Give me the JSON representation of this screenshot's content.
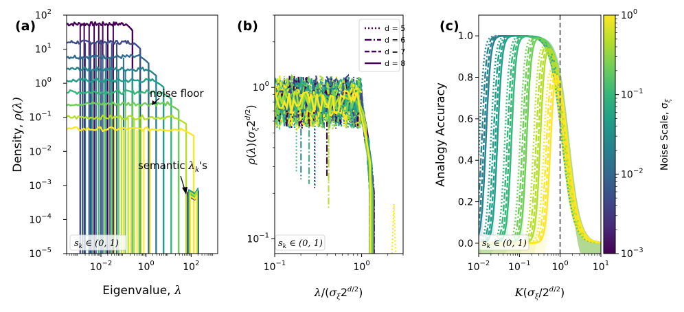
{
  "figure": {
    "colorbar": {
      "label": "Noise Scale, σ_ξ",
      "label_main": "Noise Scale, σ",
      "label_sub": "ξ",
      "ticks": [
        {
          "base": "10",
          "exp": "0"
        },
        {
          "base": "10",
          "exp": "−1"
        },
        {
          "base": "10",
          "exp": "−2"
        },
        {
          "base": "10",
          "exp": "−3"
        }
      ],
      "range": [
        0.001,
        1
      ],
      "colormap": [
        "#440154",
        "#482878",
        "#3e4989",
        "#31688e",
        "#26828e",
        "#1f9e89",
        "#35b779",
        "#6ece58",
        "#b5de2b",
        "#fde725"
      ]
    }
  },
  "chart_data": [
    {
      "panel": "(a)",
      "type": "line",
      "xlabel": "Eigenvalue, λ",
      "xlabel_main": "Eigenvalue, ",
      "xlabel_sym": "λ",
      "ylabel": "Density, ρ(λ)",
      "ylabel_main": "Density, ",
      "ylabel_sym": "ρ(λ)",
      "xscale": "log",
      "yscale": "log",
      "xlim": [
        0.0003,
        1500
      ],
      "ylim": [
        1e-05,
        100
      ],
      "xticks": [
        {
          "base": "10",
          "exp": "−2"
        },
        {
          "base": "10",
          "exp": "0"
        },
        {
          "base": "10",
          "exp": "2"
        }
      ],
      "yticks": [
        {
          "base": "10",
          "exp": "2"
        },
        {
          "base": "10",
          "exp": "1"
        },
        {
          "base": "10",
          "exp": "0"
        },
        {
          "base": "10",
          "exp": "−1"
        },
        {
          "base": "10",
          "exp": "−2"
        },
        {
          "base": "10",
          "exp": "−3"
        },
        {
          "base": "10",
          "exp": "−4"
        },
        {
          "base": "10",
          "exp": "−5"
        }
      ],
      "annotations": {
        "noise_floor": "noise floor",
        "semantic_pre": "semantic ",
        "semantic_sym": "λ",
        "semantic_sub": "k",
        "semantic_post": "'s",
        "inset_pre": "s",
        "inset_sub": "k",
        "inset_post": " ∈ (0, 1)"
      },
      "series": [
        {
          "sigma": 0.001,
          "color": "#440154",
          "plateau": 55,
          "edge": 0.25,
          "spikes": [
            0.0012,
            0.0018,
            0.003,
            0.005,
            0.008,
            0.012,
            0.02,
            0.035
          ]
        },
        {
          "sigma": 0.00215,
          "color": "#3e4989",
          "plateau": 16,
          "edge": 0.55,
          "spikes": [
            0.0012,
            0.002,
            0.0035,
            0.006,
            0.01,
            0.017,
            0.03,
            0.05
          ]
        },
        {
          "sigma": 0.00464,
          "color": "#31688e",
          "plateau": 6,
          "edge": 1.3,
          "spikes": [
            0.0015,
            0.003,
            0.006,
            0.012,
            0.025,
            0.05,
            0.1
          ]
        },
        {
          "sigma": 0.01,
          "color": "#26828e",
          "plateau": 2.6,
          "edge": 2.8,
          "spikes": [
            0.002,
            0.004,
            0.008,
            0.016,
            0.03,
            0.06,
            0.12,
            0.25
          ]
        },
        {
          "sigma": 0.0215,
          "color": "#1f9e89",
          "plateau": 1.2,
          "edge": 6,
          "spikes": [
            0.004,
            0.008,
            0.015,
            0.03,
            0.06,
            0.12,
            0.25,
            0.5
          ]
        },
        {
          "sigma": 0.0464,
          "color": "#35b779",
          "plateau": 0.55,
          "edge": 13,
          "spikes": [
            0.008,
            0.015,
            0.03,
            0.06,
            0.12,
            0.25
          ]
        },
        {
          "sigma": 0.1,
          "color": "#6ece58",
          "plateau": 0.25,
          "edge": 28,
          "spikes": [
            0.015,
            0.03,
            0.06,
            0.12,
            0.25,
            0.5
          ]
        },
        {
          "sigma": 0.215,
          "color": "#b5de2b",
          "plateau": 0.1,
          "edge": 60,
          "spikes": [
            0.04,
            0.08,
            0.16,
            0.3,
            0.6
          ]
        },
        {
          "sigma": 0.464,
          "color": "#fde725",
          "plateau": 0.045,
          "edge": 130,
          "spikes": [
            0.1,
            0.2,
            0.4,
            0.8,
            1.5
          ]
        }
      ],
      "semantic_cluster": {
        "x": [
          70,
          220
        ],
        "peak": 0.0006
      }
    },
    {
      "panel": "(b)",
      "type": "line",
      "xlabel": "λ/(σ_ξ 2^{d/2})",
      "ylabel": "ρ(λ)(σ_ξ 2^{d/2})",
      "xscale": "log",
      "yscale": "log",
      "xlim": [
        0.1,
        3
      ],
      "ylim": [
        0.08,
        3
      ],
      "xticks": [
        {
          "base": "10",
          "exp": "−1"
        },
        {
          "base": "10",
          "exp": "0"
        }
      ],
      "yticks": [
        {
          "base": "10",
          "exp": "0"
        },
        {
          "base": "10",
          "exp": "−1"
        }
      ],
      "legend": {
        "placement": "top-right",
        "entries": [
          "d = 5",
          "d = 6",
          "d = 7",
          "d = 8"
        ]
      },
      "annotations": {
        "inset_pre": "s",
        "inset_sub": "k",
        "inset_post": " ∈ (0, 1)"
      },
      "plateau_level": 0.8,
      "edge": 1.3,
      "outlier": {
        "x": 2.35,
        "peak": 0.17
      }
    },
    {
      "panel": "(c)",
      "type": "line",
      "xlabel": "K(σ_ξ/2^{d/2})",
      "ylabel": "Analogy Accuracy",
      "xscale": "log",
      "yscale": "linear",
      "xlim": [
        0.01,
        10
      ],
      "ylim": [
        -0.05,
        1.1
      ],
      "xticks": [
        {
          "base": "10",
          "exp": "−2"
        },
        {
          "base": "10",
          "exp": "−1"
        },
        {
          "base": "10",
          "exp": "0"
        },
        {
          "base": "10",
          "exp": "1"
        }
      ],
      "yticks": [
        "0.0",
        "0.2",
        "0.4",
        "0.6",
        "0.8",
        "1.0"
      ],
      "ytick_values": [
        0,
        0.2,
        0.4,
        0.6,
        0.8,
        1.0
      ],
      "reference_line_x": 1,
      "annotations": {
        "inset_pre": "s",
        "inset_sub": "k",
        "inset_post": " ∈ (0, 1)"
      },
      "series": [
        {
          "color": "#26828e",
          "rise": 0.013
        },
        {
          "color": "#1f9e89",
          "rise": 0.025
        },
        {
          "color": "#35b779",
          "rise": 0.055
        },
        {
          "color": "#6ece58",
          "rise": 0.13
        },
        {
          "color": "#b5de2b",
          "rise": 0.28
        },
        {
          "color": "#fde725",
          "rise": 0.5
        }
      ],
      "fall_center": 1.3
    }
  ]
}
